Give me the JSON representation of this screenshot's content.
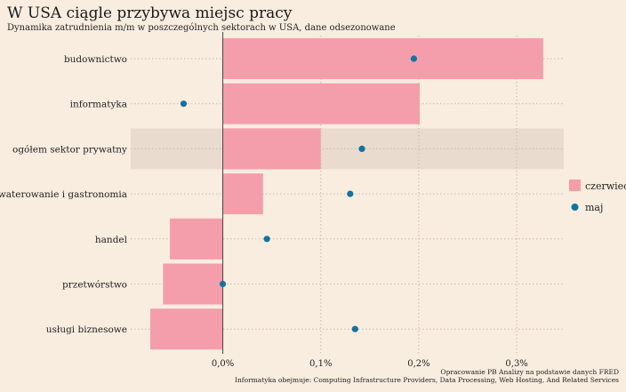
{
  "chart_data": {
    "type": "bar",
    "title": "W USA ciągle przybywa miejsc pracy",
    "subtitle": "Dynamika zatrudnienia m/m w poszczególnych sektorach w USA, dane odsezonowane",
    "categories": [
      "budownictwo",
      "informatyka",
      "ogółem sektor prywatny",
      "zakwaterowanie i gastronomia",
      "handel",
      "przetwórstwo",
      "usługi biznesowe"
    ],
    "highlighted_category": "ogółem sektor prywatny",
    "series": [
      {
        "name": "czerwiec",
        "mark": "bar",
        "color": "#f59eab",
        "values": [
          0.327,
          0.201,
          0.1,
          0.041,
          -0.054,
          -0.061,
          -0.074
        ]
      },
      {
        "name": "maj",
        "mark": "point",
        "color": "#1273a0",
        "values": [
          0.195,
          -0.04,
          0.142,
          0.13,
          0.045,
          0.0,
          0.135
        ]
      }
    ],
    "xlim": [
      -0.094,
      0.348
    ],
    "xticks": [
      0.0,
      0.1,
      0.2,
      0.3
    ],
    "xtick_labels": [
      "0,0%",
      "0,1%",
      "0,2%",
      "0,3%"
    ],
    "legend_position": "right",
    "grid": "dotted",
    "caption": [
      "Opracowanie PB Analizy na podstawie danych FRED",
      "Informatyka obejmuje: Computing Infrastructure Providers, Data Processing, Web Hosting, And Related Services"
    ],
    "colors": {
      "background": "#f9ede0",
      "highlight": "#e9dccf",
      "zero_line": "#444444",
      "grid": "#c9bcae"
    }
  }
}
